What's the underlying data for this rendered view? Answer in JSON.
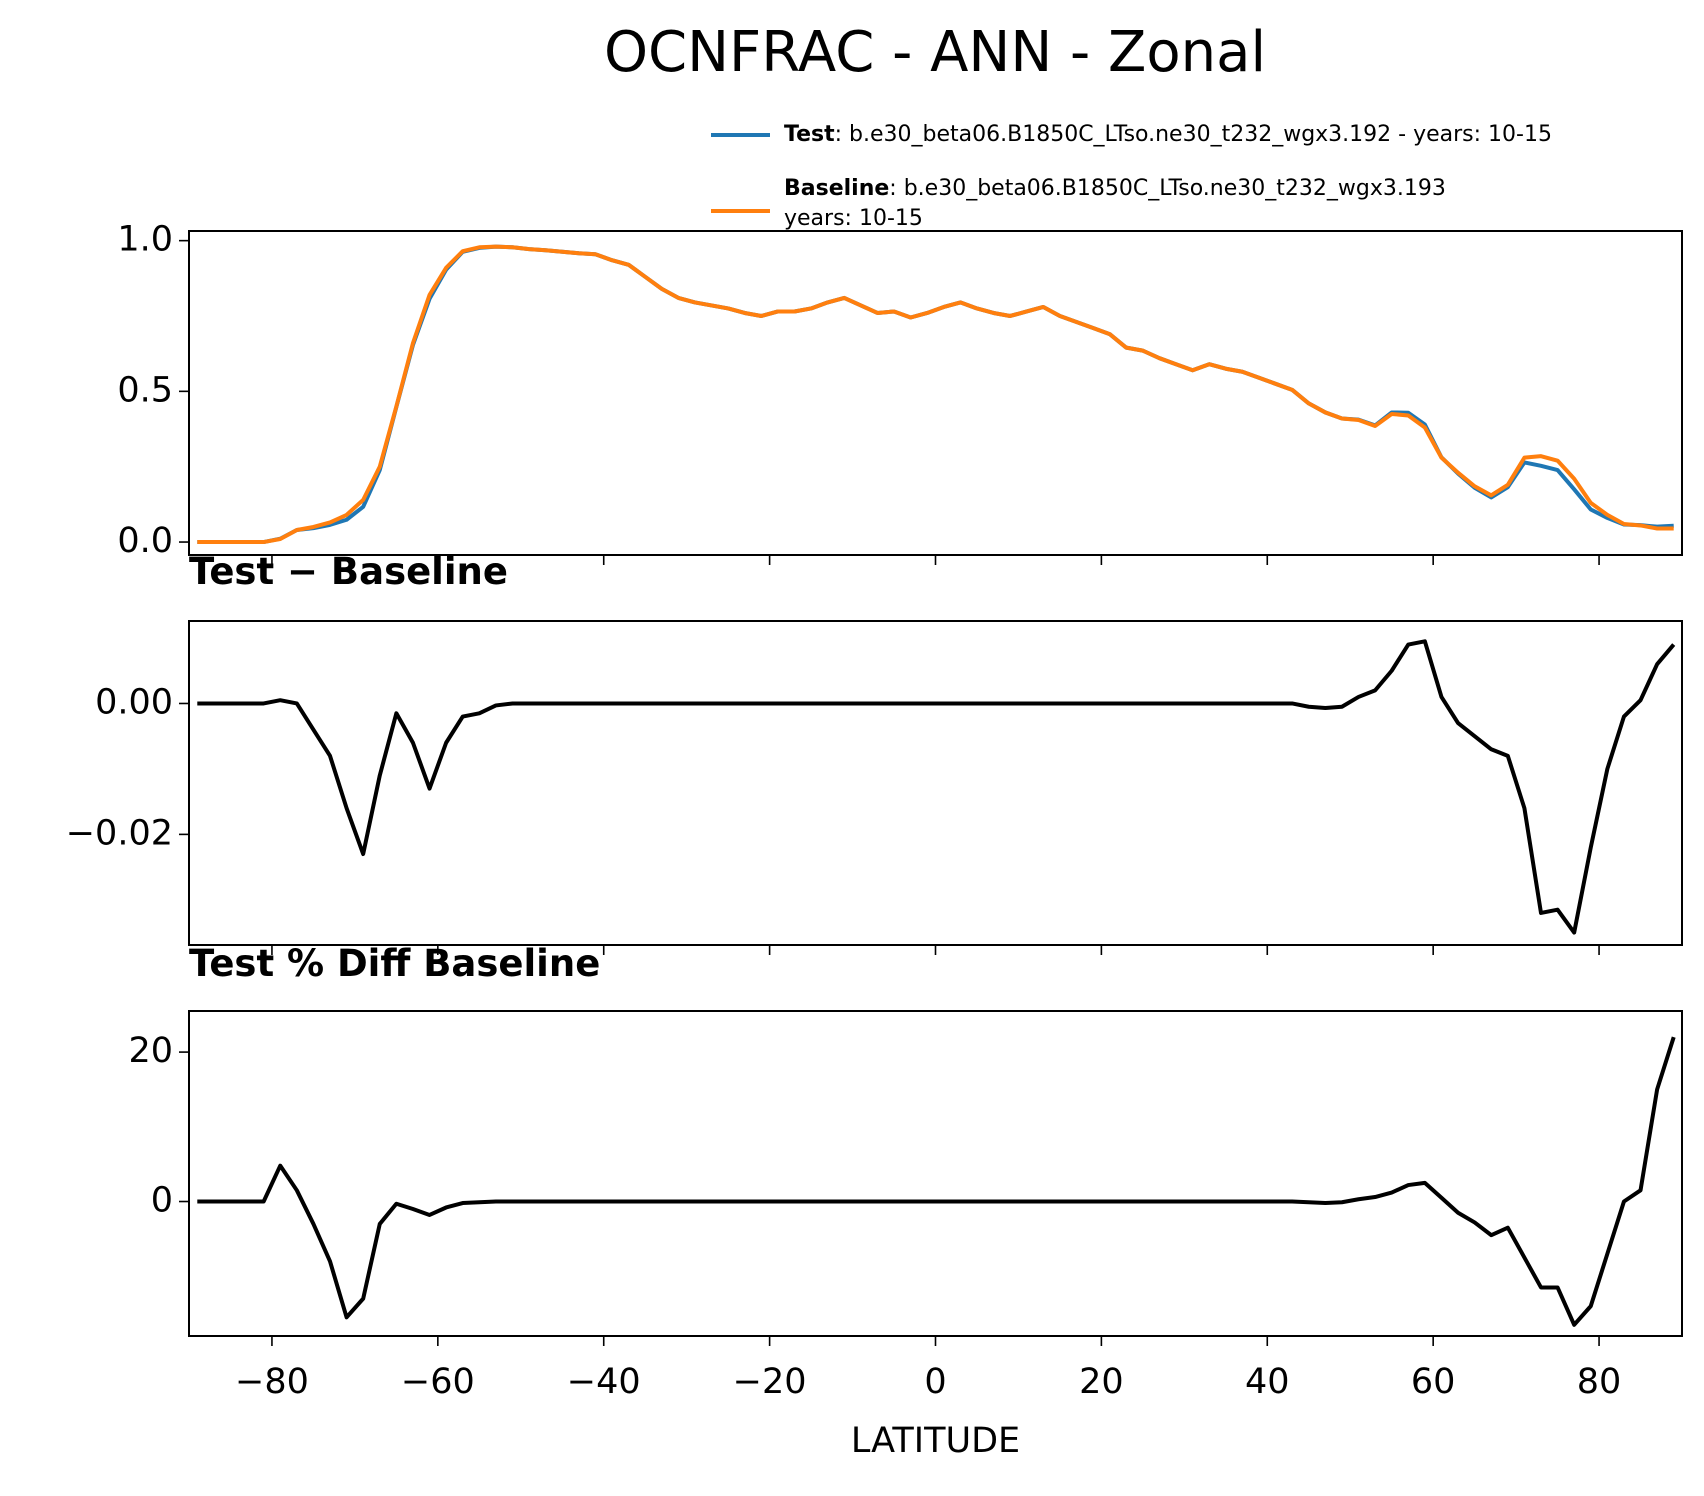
{
  "chart_data": [
    {
      "type": "line",
      "title": "OCNFRAC - ANN - Zonal",
      "x": [
        -89,
        -87,
        -85,
        -83,
        -81,
        -79,
        -77,
        -75,
        -73,
        -71,
        -69,
        -67,
        -65,
        -63,
        -61,
        -59,
        -57,
        -55,
        -53,
        -51,
        -49,
        -47,
        -45,
        -43,
        -41,
        -39,
        -37,
        -35,
        -33,
        -31,
        -29,
        -27,
        -25,
        -23,
        -21,
        -19,
        -17,
        -15,
        -13,
        -11,
        -9,
        -7,
        -5,
        -3,
        -1,
        1,
        3,
        5,
        7,
        9,
        11,
        13,
        15,
        17,
        19,
        21,
        23,
        25,
        27,
        29,
        31,
        33,
        35,
        37,
        39,
        41,
        43,
        45,
        47,
        49,
        51,
        53,
        55,
        57,
        59,
        61,
        63,
        65,
        67,
        69,
        71,
        73,
        75,
        77,
        79,
        81,
        83,
        85,
        87,
        89
      ],
      "series": [
        {
          "name": "Test",
          "description": [
            ": b.e30_beta06.B1850C_LTso.ne30_t232_wgx3.192 - years: 10-15"
          ],
          "color": "#1f77b4",
          "values": [
            0,
            0,
            0,
            0,
            0,
            0.011,
            0.04,
            0.046,
            0.057,
            0.074,
            0.117,
            0.239,
            0.448,
            0.654,
            0.807,
            0.904,
            0.963,
            0.976,
            0.98,
            0.978,
            0.972,
            0.968,
            0.963,
            0.958,
            0.955,
            0.935,
            0.92,
            0.88,
            0.84,
            0.81,
            0.795,
            0.785,
            0.775,
            0.76,
            0.75,
            0.765,
            0.765,
            0.775,
            0.795,
            0.81,
            0.785,
            0.76,
            0.765,
            0.745,
            0.76,
            0.78,
            0.795,
            0.775,
            0.76,
            0.75,
            0.765,
            0.78,
            0.75,
            0.73,
            0.71,
            0.69,
            0.645,
            0.635,
            0.61,
            0.59,
            0.57,
            0.59,
            0.575,
            0.565,
            0.545,
            0.525,
            0.505,
            0.46,
            0.43,
            0.41,
            0.406,
            0.387,
            0.43,
            0.429,
            0.39,
            0.281,
            0.227,
            0.18,
            0.148,
            0.182,
            0.264,
            0.253,
            0.239,
            0.175,
            0.108,
            0.08,
            0.058,
            0.056,
            0.051,
            0.054
          ]
        },
        {
          "name": "Baseline",
          "description": [
            ": b.e30_beta06.B1850C_LTso.ne30_t232_wgx3.193",
            "years: 10-15"
          ],
          "color": "#ff7f0e",
          "values": [
            0,
            0,
            0,
            0,
            0,
            0.01,
            0.04,
            0.05,
            0.065,
            0.09,
            0.14,
            0.25,
            0.45,
            0.66,
            0.82,
            0.91,
            0.965,
            0.978,
            0.98,
            0.978,
            0.972,
            0.968,
            0.963,
            0.958,
            0.955,
            0.935,
            0.92,
            0.88,
            0.84,
            0.81,
            0.795,
            0.785,
            0.775,
            0.76,
            0.75,
            0.765,
            0.765,
            0.775,
            0.795,
            0.81,
            0.785,
            0.76,
            0.765,
            0.745,
            0.76,
            0.78,
            0.795,
            0.775,
            0.76,
            0.75,
            0.765,
            0.78,
            0.75,
            0.73,
            0.71,
            0.69,
            0.645,
            0.635,
            0.61,
            0.59,
            0.57,
            0.59,
            0.575,
            0.565,
            0.545,
            0.525,
            0.505,
            0.46,
            0.43,
            0.41,
            0.405,
            0.385,
            0.425,
            0.42,
            0.38,
            0.28,
            0.23,
            0.185,
            0.155,
            0.19,
            0.28,
            0.285,
            0.27,
            0.21,
            0.13,
            0.09,
            0.06,
            0.055,
            0.045,
            0.045
          ]
        }
      ],
      "xlim": [
        -90,
        90
      ],
      "xticks": [
        -80,
        -60,
        -40,
        -20,
        0,
        20,
        40,
        60,
        80
      ],
      "ylim": [
        -0.043,
        1.032
      ],
      "yticks": [
        {
          "value": 0,
          "label": "0.0"
        },
        {
          "value": 0.5,
          "label": "0.5"
        },
        {
          "value": 1,
          "label": "1.0"
        }
      ],
      "legend": "upper right"
    },
    {
      "type": "line",
      "title": "Test − Baseline",
      "x": [
        -89,
        -87,
        -85,
        -83,
        -81,
        -79,
        -77,
        -75,
        -73,
        -71,
        -69,
        -67,
        -65,
        -63,
        -61,
        -59,
        -57,
        -55,
        -53,
        -51,
        -49,
        -47,
        -45,
        -43,
        -41,
        -39,
        -37,
        -35,
        -33,
        -31,
        -29,
        -27,
        -25,
        -23,
        -21,
        -19,
        -17,
        -15,
        -13,
        -11,
        -9,
        -7,
        -5,
        -3,
        -1,
        1,
        3,
        5,
        7,
        9,
        11,
        13,
        15,
        17,
        19,
        21,
        23,
        25,
        27,
        29,
        31,
        33,
        35,
        37,
        39,
        41,
        43,
        45,
        47,
        49,
        51,
        53,
        55,
        57,
        59,
        61,
        63,
        65,
        67,
        69,
        71,
        73,
        75,
        77,
        79,
        81,
        83,
        85,
        87,
        89
      ],
      "color": "#000000",
      "values": [
        0,
        0,
        0,
        0,
        0,
        0.0005,
        0,
        -0.004,
        -0.008,
        -0.016,
        -0.023,
        -0.011,
        -0.0015,
        -0.006,
        -0.013,
        -0.006,
        -0.002,
        -0.0015,
        -0.0003,
        0,
        0,
        0,
        0,
        0,
        0,
        0,
        0,
        0,
        0,
        0,
        0,
        0,
        0,
        0,
        0,
        0,
        0,
        0,
        0,
        0,
        0,
        0,
        0,
        0,
        0,
        0,
        0,
        0,
        0,
        0,
        0,
        0,
        0,
        0,
        0,
        0,
        0,
        0,
        0,
        0,
        0,
        0,
        0,
        0,
        0,
        0,
        0,
        -0.0005,
        -0.0007,
        -0.0005,
        0.001,
        0.002,
        0.005,
        0.009,
        0.0095,
        0.001,
        -0.003,
        -0.005,
        -0.007,
        -0.008,
        -0.016,
        -0.032,
        -0.0315,
        -0.035,
        -0.022,
        -0.01,
        -0.002,
        0.0005,
        0.006,
        0.009
      ],
      "xlim": [
        -90,
        90
      ],
      "xticks": [
        -80,
        -60,
        -40,
        -20,
        0,
        20,
        40,
        60,
        80
      ],
      "ylim": [
        -0.0369,
        0.0126
      ],
      "yticks": [
        {
          "value": 0,
          "label": "0.00"
        },
        {
          "value": -0.02,
          "label": "−0.02"
        }
      ]
    },
    {
      "type": "line",
      "title": "Test % Diff Baseline",
      "x_label": "LATITUDE",
      "x": [
        -89,
        -87,
        -85,
        -83,
        -81,
        -79,
        -77,
        -75,
        -73,
        -71,
        -69,
        -67,
        -65,
        -63,
        -61,
        -59,
        -57,
        -55,
        -53,
        -51,
        -49,
        -47,
        -45,
        -43,
        -41,
        -39,
        -37,
        -35,
        -33,
        -31,
        -29,
        -27,
        -25,
        -23,
        -21,
        -19,
        -17,
        -15,
        -13,
        -11,
        -9,
        -7,
        -5,
        -3,
        -1,
        1,
        3,
        5,
        7,
        9,
        11,
        13,
        15,
        17,
        19,
        21,
        23,
        25,
        27,
        29,
        31,
        33,
        35,
        37,
        39,
        41,
        43,
        45,
        47,
        49,
        51,
        53,
        55,
        57,
        59,
        61,
        63,
        65,
        67,
        69,
        71,
        73,
        75,
        77,
        79,
        81,
        83,
        85,
        87,
        89
      ],
      "color": "#000000",
      "values": [
        0,
        0,
        0,
        0,
        0,
        4.8,
        1.5,
        -3,
        -8,
        -15.5,
        -13,
        -3,
        -0.3,
        -1,
        -1.8,
        -0.8,
        -0.2,
        -0.1,
        0,
        0,
        0,
        0,
        0,
        0,
        0,
        0,
        0,
        0,
        0,
        0,
        0,
        0,
        0,
        0,
        0,
        0,
        0,
        0,
        0,
        0,
        0,
        0,
        0,
        0,
        0,
        0,
        0,
        0,
        0,
        0,
        0,
        0,
        0,
        0,
        0,
        0,
        0,
        0,
        0,
        0,
        0,
        0,
        0,
        0,
        0,
        0,
        0,
        -0.1,
        -0.2,
        -0.1,
        0.3,
        0.6,
        1.2,
        2.2,
        2.5,
        0.5,
        -1.5,
        -2.8,
        -4.5,
        -3.5,
        -7.5,
        -11.5,
        -11.5,
        -16.5,
        -14,
        -7,
        0,
        1.5,
        15,
        22
      ],
      "xlim": [
        -90,
        90
      ],
      "xticks": [
        {
          "value": -80,
          "label": "−80"
        },
        {
          "value": -60,
          "label": "−60"
        },
        {
          "value": -40,
          "label": "−40"
        },
        {
          "value": -20,
          "label": "−20"
        },
        0,
        20,
        40,
        60,
        80
      ],
      "ylim": [
        -18,
        25.5
      ],
      "yticks": [
        0,
        20
      ]
    }
  ]
}
